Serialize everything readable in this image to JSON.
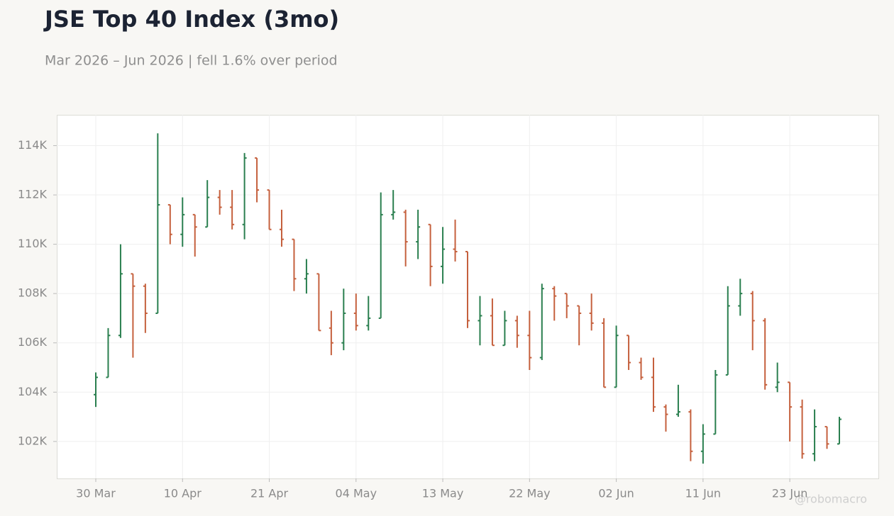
{
  "chart_data": {
    "type": "ohlc",
    "title": "JSE Top 40 Index (3mo)",
    "subtitle": "Mar 2026 – Jun 2026 | fell 1.6% over period",
    "watermark": "@robomacro",
    "categories": [
      "30 Mar",
      null,
      null,
      null,
      null,
      null,
      null,
      "10 Apr",
      null,
      null,
      null,
      null,
      null,
      null,
      "21 Apr",
      null,
      null,
      null,
      null,
      null,
      null,
      "04 May",
      null,
      null,
      null,
      null,
      null,
      null,
      "13 May",
      null,
      null,
      null,
      null,
      null,
      null,
      "22 May",
      null,
      null,
      null,
      null,
      null,
      null,
      "02 Jun",
      null,
      null,
      null,
      null,
      null,
      null,
      "11 Jun",
      null,
      null,
      null,
      null,
      null,
      null,
      "23 Jun",
      null,
      null,
      null,
      null
    ],
    "open": [
      103900,
      104600,
      106300,
      108800,
      108300,
      107200,
      111600,
      110400,
      111200,
      110700,
      111900,
      111500,
      110800,
      113500,
      112200,
      110600,
      110200,
      108600,
      108800,
      106600,
      106000,
      107200,
      106700,
      107000,
      111200,
      111300,
      110100,
      110800,
      109100,
      109800,
      109700,
      106900,
      107100,
      105900,
      106900,
      106300,
      105400,
      108200,
      108000,
      107500,
      107200,
      106800,
      104200,
      106300,
      105200,
      104600,
      103400,
      103100,
      103200,
      101600,
      102300,
      104700,
      107500,
      108000,
      106900,
      104200,
      104400,
      103400,
      101500,
      102600,
      101900
    ],
    "high": [
      104800,
      106600,
      110000,
      108800,
      108400,
      114500,
      111600,
      111900,
      111200,
      112600,
      112200,
      112200,
      113700,
      113500,
      112200,
      111400,
      110200,
      109400,
      108800,
      107300,
      108200,
      108000,
      107900,
      112100,
      112200,
      111400,
      111400,
      110800,
      110700,
      111000,
      109700,
      107900,
      107800,
      107300,
      107100,
      107300,
      108400,
      108300,
      108000,
      107500,
      108000,
      107000,
      106700,
      106300,
      105400,
      105400,
      103500,
      104300,
      103300,
      102700,
      104900,
      108300,
      108600,
      108100,
      107000,
      105200,
      104400,
      103700,
      103300,
      102600,
      103000
    ],
    "low": [
      103400,
      104600,
      106200,
      105400,
      106400,
      107200,
      110000,
      109900,
      109500,
      110700,
      111200,
      110600,
      110200,
      111700,
      110600,
      109900,
      108100,
      108000,
      106500,
      105500,
      105700,
      106500,
      106500,
      107000,
      111000,
      109100,
      109400,
      108300,
      108400,
      109300,
      106600,
      105900,
      105900,
      105900,
      105800,
      104900,
      105300,
      106900,
      107000,
      105900,
      106500,
      104200,
      104200,
      104900,
      104500,
      103200,
      102400,
      103000,
      101200,
      101100,
      102300,
      104700,
      107100,
      105700,
      104100,
      104000,
      102000,
      101300,
      101200,
      101700,
      101900
    ],
    "close": [
      104600,
      106300,
      108800,
      108300,
      107200,
      111600,
      110400,
      111200,
      110700,
      111900,
      111500,
      110800,
      113500,
      112200,
      110600,
      110200,
      108600,
      108800,
      106500,
      106000,
      107200,
      106700,
      107000,
      111200,
      111300,
      110100,
      110700,
      109100,
      109800,
      109700,
      106900,
      107100,
      105900,
      106900,
      106300,
      105400,
      108200,
      107900,
      107500,
      107200,
      106800,
      104200,
      106300,
      105200,
      104600,
      103400,
      103100,
      103200,
      101600,
      102300,
      104700,
      107500,
      108000,
      106900,
      104300,
      104400,
      103400,
      101500,
      102600,
      101900,
      102900
    ],
    "up_color": "#2a7f4f",
    "down_color": "#c5603d",
    "ylim": [
      100500,
      115250
    ],
    "yticks": [
      {
        "value": 102000,
        "label": "102K"
      },
      {
        "value": 104000,
        "label": "104K"
      },
      {
        "value": 106000,
        "label": "106K"
      },
      {
        "value": 108000,
        "label": "108K"
      },
      {
        "value": 110000,
        "label": "110K"
      },
      {
        "value": 112000,
        "label": "112K"
      },
      {
        "value": 114000,
        "label": "114K"
      }
    ],
    "grid": true
  }
}
